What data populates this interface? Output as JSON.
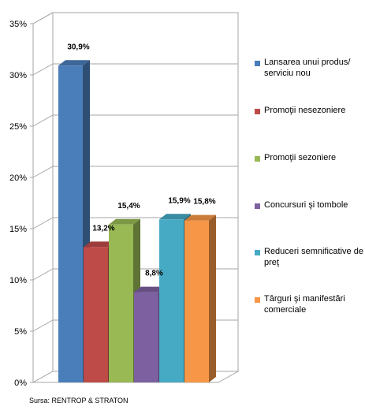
{
  "chart_data": {
    "type": "bar",
    "title": "",
    "xlabel": "",
    "ylabel": "",
    "ylim": [
      0,
      35
    ],
    "yticks": [
      "0%",
      "5%",
      "10%",
      "15%",
      "20%",
      "25%",
      "30%",
      "35%"
    ],
    "grid": true,
    "legend_position": "right",
    "series": [
      {
        "name": "Lansarea unui produs/ serviciu nou",
        "value": 30.9,
        "label": "30,9%",
        "color": "#4a7ebb"
      },
      {
        "name": "Promoţii nesezoniere",
        "value": 13.2,
        "label": "13,2%",
        "color": "#be4b48"
      },
      {
        "name": "Promoţii sezoniere",
        "value": 15.4,
        "label": "15,4%",
        "color": "#98b954"
      },
      {
        "name": "Concursuri şi tombole",
        "value": 8.8,
        "label": "8,8%",
        "color": "#7d60a0"
      },
      {
        "name": "Reduceri semnificative de preţ",
        "value": 15.9,
        "label": "15,9%",
        "color": "#46aac5"
      },
      {
        "name": "Târguri şi manifestări comerciale",
        "value": 15.8,
        "label": "15,8%",
        "color": "#f79646"
      }
    ]
  },
  "source": "Sursa: RENTROP & STRATON"
}
